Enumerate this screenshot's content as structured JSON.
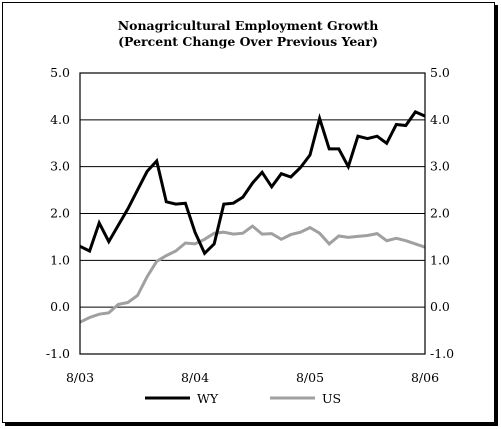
{
  "chart_data": {
    "type": "line",
    "title": "Nonagricultural Employment Growth",
    "subtitle": "(Percent Change Over Previous Year)",
    "xlabel": "",
    "ylabel": "",
    "x_tick_labels": [
      "8/03",
      "8/04",
      "8/05",
      "8/06"
    ],
    "y_tick_labels": [
      "5.0",
      "4.0",
      "3.0",
      "2.0",
      "1.0",
      "0.0",
      "-1.0"
    ],
    "ylim": [
      -1.0,
      5.0
    ],
    "x_months": 36,
    "grid": "horizontal",
    "legend": "bottom",
    "series": [
      {
        "name": "WY",
        "color": "#000000",
        "values": [
          1.3,
          1.2,
          1.8,
          1.4,
          1.75,
          2.1,
          2.5,
          2.9,
          3.12,
          2.25,
          2.2,
          2.22,
          1.6,
          1.15,
          1.35,
          2.2,
          2.22,
          2.35,
          2.65,
          2.88,
          2.57,
          2.85,
          2.78,
          2.98,
          3.25,
          4.03,
          3.38,
          3.38,
          3.0,
          3.65,
          3.6,
          3.65,
          3.5,
          3.9,
          3.88,
          4.17,
          4.08
        ]
      },
      {
        "name": "US",
        "color": "#a0a0a0",
        "values": [
          -0.32,
          -0.22,
          -0.15,
          -0.12,
          0.06,
          0.1,
          0.25,
          0.65,
          0.98,
          1.1,
          1.2,
          1.37,
          1.35,
          1.45,
          1.58,
          1.6,
          1.56,
          1.58,
          1.73,
          1.56,
          1.57,
          1.45,
          1.55,
          1.6,
          1.7,
          1.58,
          1.35,
          1.52,
          1.49,
          1.51,
          1.53,
          1.57,
          1.42,
          1.47,
          1.42,
          1.35,
          1.28
        ]
      }
    ]
  }
}
